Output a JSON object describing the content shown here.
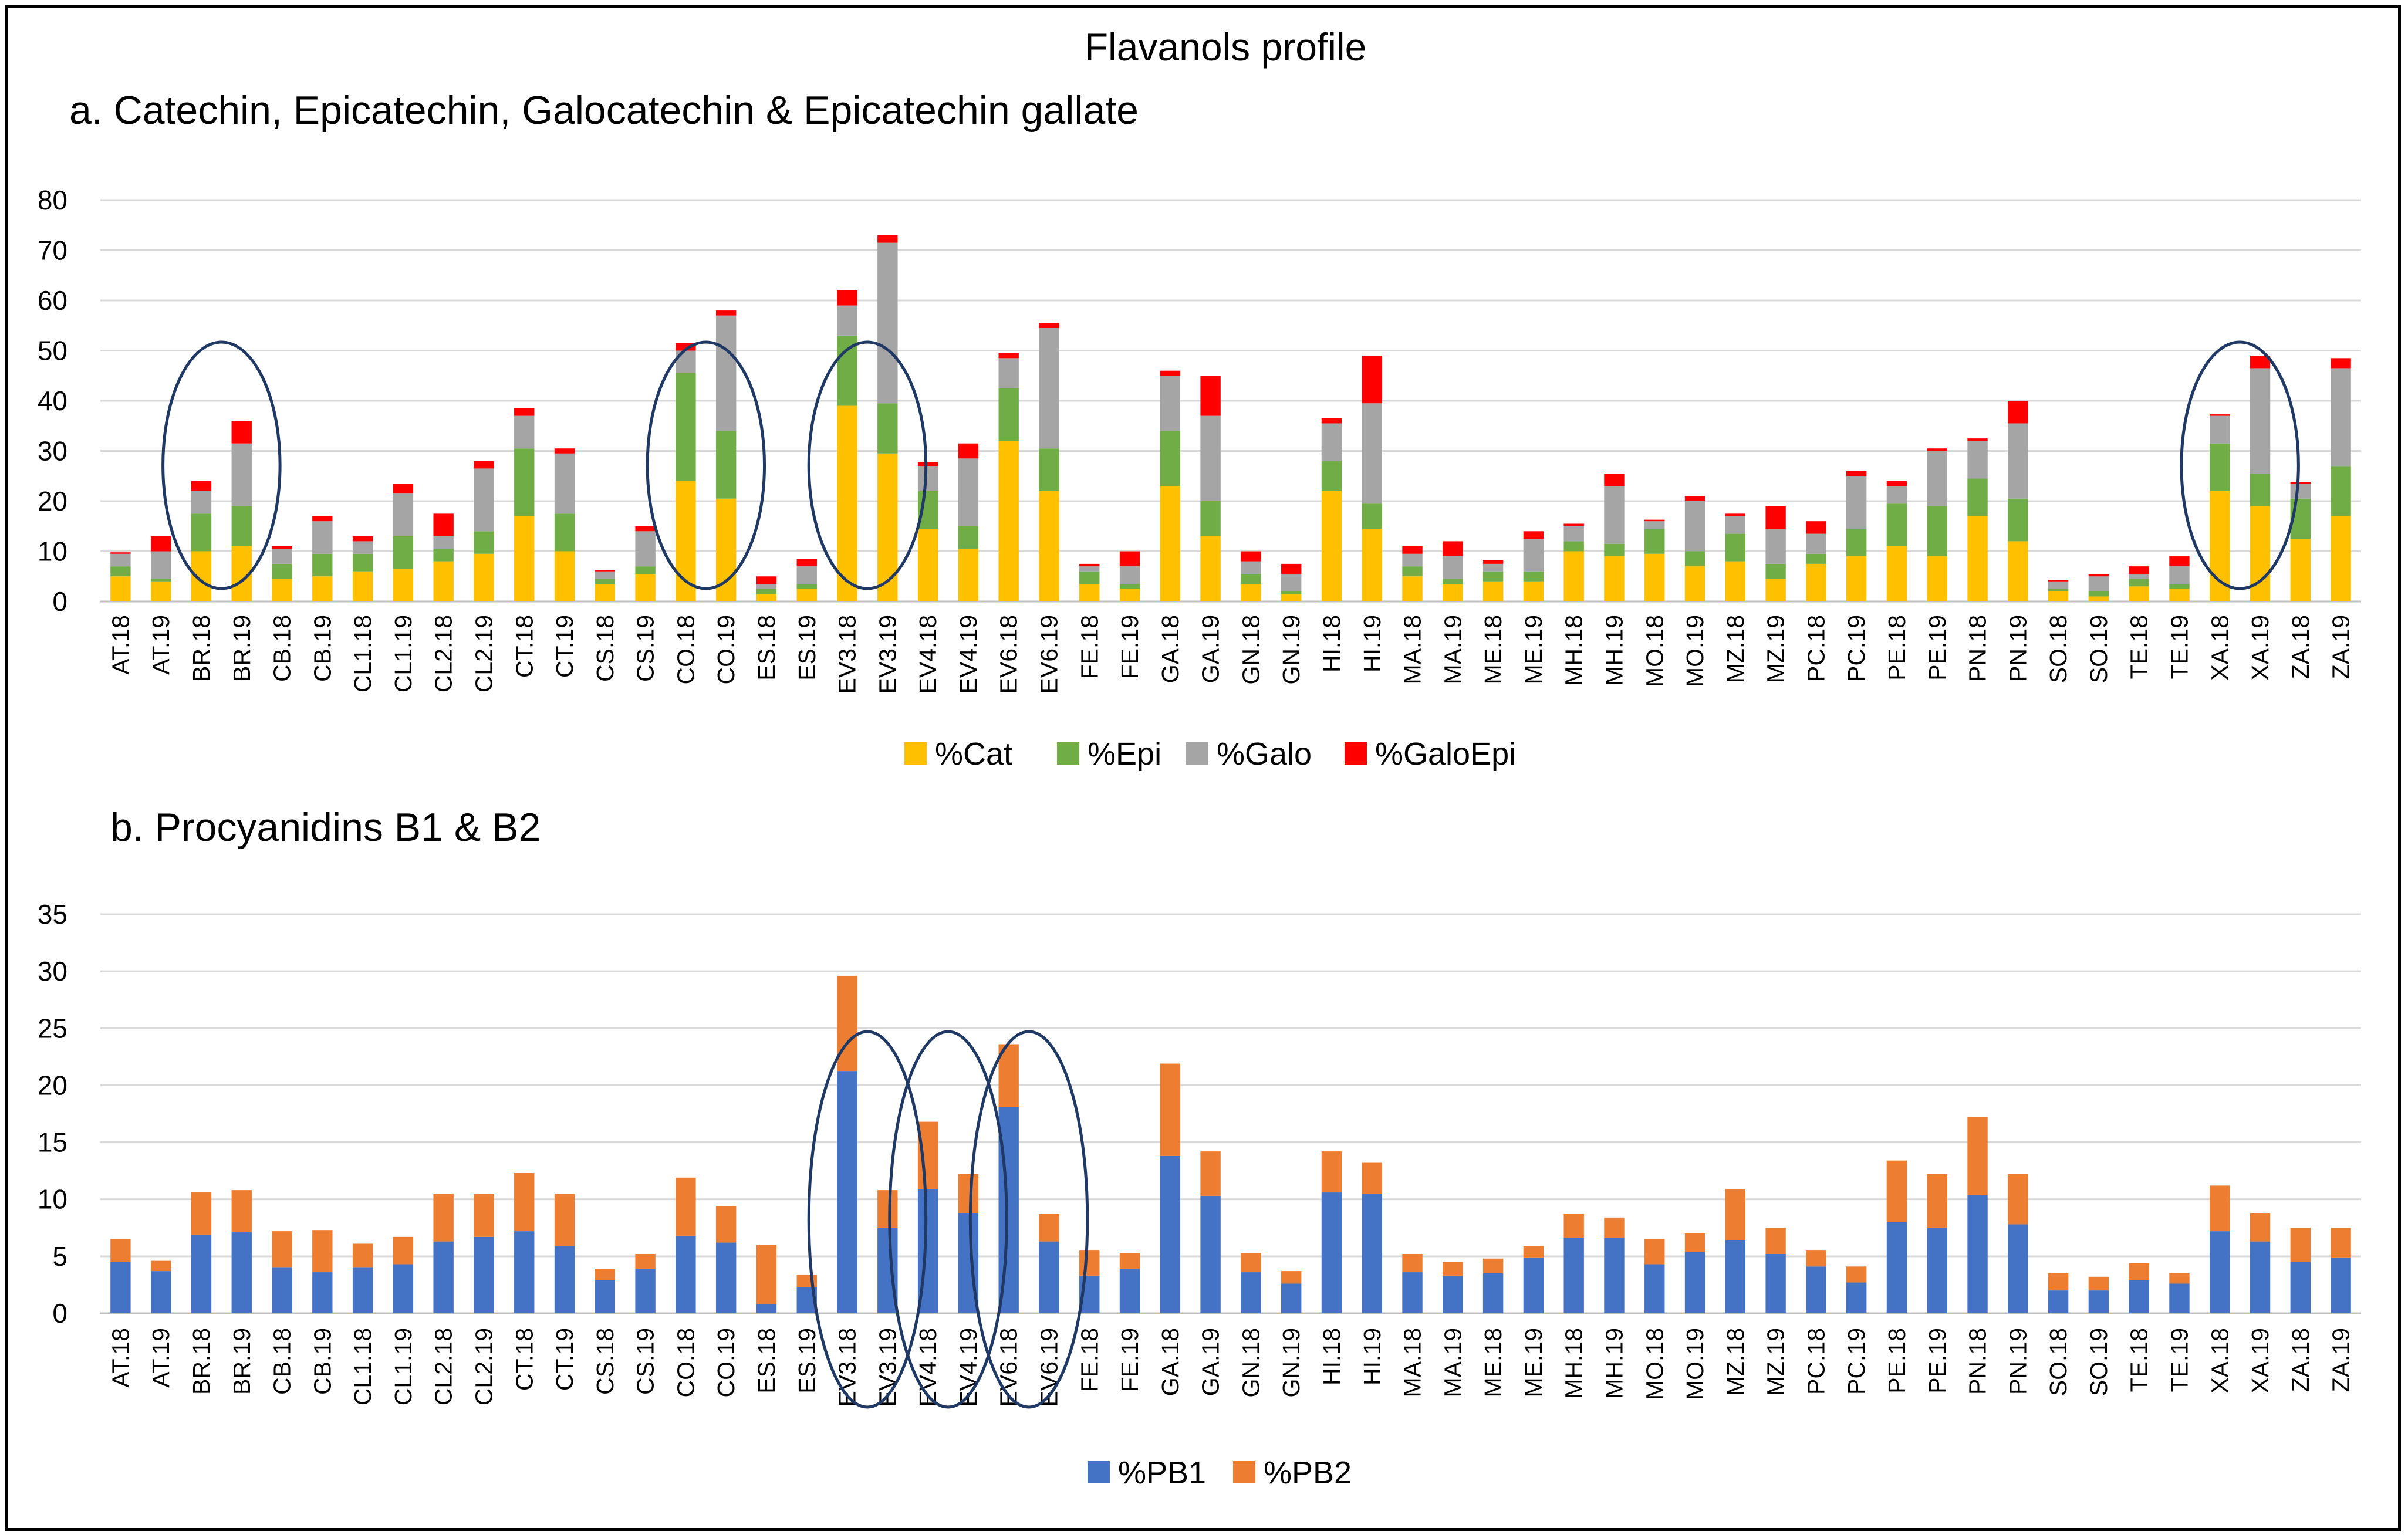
{
  "chart_data": [
    {
      "type": "bar",
      "stacked": true,
      "title": "Flavanols profile",
      "subtitle": "a. Catechin, Epicatechin, Galocatechin & Epicatechin gallate",
      "ylim": [
        0,
        80
      ],
      "yticks": [
        "0",
        "10",
        "20",
        "30",
        "40",
        "50",
        "60",
        "70",
        "80"
      ],
      "categories": [
        "AT.18",
        "AT.19",
        "BR.18",
        "BR.19",
        "CB.18",
        "CB.19",
        "CL1.18",
        "CL1.19",
        "CL2.18",
        "CL2.19",
        "CT.18",
        "CT.19",
        "CS.18",
        "CS.19",
        "CO.18",
        "CO.19",
        "ES.18",
        "ES.19",
        "EV3.18",
        "EV3.19",
        "EV4.18",
        "EV4.19",
        "EV6.18",
        "EV6.19",
        "FE.18",
        "FE.19",
        "GA.18",
        "GA.19",
        "GN.18",
        "GN.19",
        "HI.18",
        "HI.19",
        "MA.18",
        "MA.19",
        "ME.18",
        "ME.19",
        "MH.18",
        "MH.19",
        "MO.18",
        "MO.19",
        "MZ.18",
        "MZ.19",
        "PC.18",
        "PC.19",
        "PE.18",
        "PE.19",
        "PN.18",
        "PN.19",
        "SO.18",
        "SO.19",
        "TE.18",
        "TE.19",
        "XA.18",
        "XA.19",
        "ZA.18",
        "ZA.19"
      ],
      "series": [
        {
          "name": "%Cat",
          "color": "#FFC000",
          "values": [
            5,
            4,
            10,
            11,
            4.5,
            5,
            6,
            6.5,
            8,
            9.5,
            17,
            10,
            3.5,
            5.5,
            24,
            20.5,
            1.5,
            2.5,
            39,
            29.5,
            14.5,
            10.5,
            32,
            22,
            3.5,
            2.5,
            23,
            13,
            3.5,
            1.5,
            22,
            14.5,
            5,
            3.5,
            4,
            4,
            10,
            9,
            9.5,
            7,
            8,
            4.5,
            7.5,
            9,
            11,
            9,
            17,
            12,
            2,
            1,
            3,
            2.5,
            22,
            19,
            12.5,
            17
          ]
        },
        {
          "name": "%Epi",
          "color": "#70AD47",
          "values": [
            2,
            0.5,
            7.5,
            8,
            3,
            4.5,
            3.5,
            6.5,
            2.5,
            4.5,
            13.5,
            7.5,
            1,
            1.5,
            21.5,
            13.5,
            1,
            1,
            14,
            10,
            7.5,
            4.5,
            10.5,
            8.5,
            2.5,
            1,
            11,
            7,
            2,
            0.5,
            6,
            5,
            2,
            1,
            2,
            2,
            2,
            2.5,
            5,
            3,
            5.5,
            3,
            2,
            5.5,
            8.5,
            10,
            7.5,
            8.5,
            0.5,
            1,
            1.5,
            1,
            9.5,
            6.5,
            8,
            10
          ]
        },
        {
          "name": "%Galo",
          "color": "#A5A5A5",
          "values": [
            2.5,
            5.5,
            4.5,
            12.5,
            3,
            6.5,
            2.5,
            8.5,
            2.5,
            12.5,
            6.5,
            12,
            1.5,
            7,
            4.5,
            23,
            1,
            3.5,
            6,
            32,
            5,
            13.5,
            6,
            24,
            1,
            3.5,
            11,
            17,
            2.5,
            3.5,
            7.5,
            20,
            2.5,
            4.5,
            1.5,
            6.5,
            3,
            11.5,
            1.5,
            10,
            3.5,
            7,
            4,
            10.5,
            3.5,
            11,
            7.5,
            15,
            1.5,
            3,
            1,
            3.5,
            5.5,
            21,
            3,
            19.5
          ]
        },
        {
          "name": "%GaloEpi",
          "color": "#FF0000",
          "values": [
            0.3,
            3,
            2,
            4.5,
            0.5,
            1,
            1,
            2,
            4.5,
            1.5,
            1.5,
            1,
            0.3,
            1,
            1.5,
            1,
            1.5,
            1.5,
            3,
            1.5,
            0.8,
            3,
            1,
            1,
            0.5,
            3,
            1,
            8,
            2,
            2,
            1,
            9.5,
            1.5,
            3,
            0.8,
            1.5,
            0.5,
            2.5,
            0.3,
            1,
            0.5,
            4.5,
            2.5,
            1,
            1,
            0.5,
            0.5,
            4.5,
            0.3,
            0.5,
            1.5,
            2,
            0.3,
            2.5,
            0.3,
            2
          ]
        }
      ],
      "legend": "bottom"
    },
    {
      "type": "bar",
      "stacked": true,
      "title": "b. Procyanidins B1 & B2",
      "ylim": [
        0,
        35
      ],
      "yticks": [
        "0",
        "5",
        "10",
        "15",
        "20",
        "25",
        "30",
        "35"
      ],
      "categories": [
        "AT.18",
        "AT.19",
        "BR.18",
        "BR.19",
        "CB.18",
        "CB.19",
        "CL1.18",
        "CL1.19",
        "CL2.18",
        "CL2.19",
        "CT.18",
        "CT.19",
        "CS.18",
        "CS.19",
        "CO.18",
        "CO.19",
        "ES.18",
        "ES.19",
        "EV3.18",
        "EV3.19",
        "EV4.18",
        "EV4.19",
        "EV6.18",
        "EV6.19",
        "FE.18",
        "FE.19",
        "GA.18",
        "GA.19",
        "GN.18",
        "GN.19",
        "HI.18",
        "HI.19",
        "MA.18",
        "MA.19",
        "ME.18",
        "ME.19",
        "MH.18",
        "MH.19",
        "MO.18",
        "MO.19",
        "MZ.18",
        "MZ.19",
        "PC.18",
        "PC.19",
        "PE.18",
        "PE.19",
        "PN.18",
        "PN.19",
        "SO.18",
        "SO.19",
        "TE.18",
        "TE.19",
        "XA.18",
        "XA.19",
        "ZA.18",
        "ZA.19"
      ],
      "series": [
        {
          "name": "%PB1",
          "color": "#4472C4",
          "values": [
            4.5,
            3.7,
            6.9,
            7.1,
            4,
            3.6,
            4,
            4.3,
            6.3,
            6.7,
            7.2,
            5.9,
            2.9,
            3.9,
            6.8,
            6.2,
            0.8,
            2.3,
            21.2,
            7.5,
            10.9,
            8.8,
            18.1,
            6.3,
            3.3,
            3.9,
            13.8,
            10.3,
            3.6,
            2.6,
            10.6,
            10.5,
            3.6,
            3.3,
            3.5,
            4.9,
            6.6,
            6.6,
            4.3,
            5.4,
            6.4,
            5.2,
            4.1,
            2.7,
            8,
            7.5,
            10.4,
            7.8,
            2,
            2,
            2.9,
            2.6,
            7.2,
            6.3,
            4.5,
            4.9
          ]
        },
        {
          "name": "%PB2",
          "color": "#ED7D31",
          "values": [
            2,
            0.9,
            3.7,
            3.7,
            3.2,
            3.7,
            2.1,
            2.4,
            4.2,
            3.8,
            5.1,
            4.6,
            1,
            1.3,
            5.1,
            3.2,
            5.2,
            1.1,
            8.4,
            3.3,
            5.9,
            3.4,
            5.5,
            2.4,
            2.2,
            1.4,
            8.1,
            3.9,
            1.7,
            1.1,
            3.6,
            2.7,
            1.6,
            1.2,
            1.3,
            1,
            2.1,
            1.8,
            2.2,
            1.6,
            4.5,
            2.3,
            1.4,
            1.4,
            5.4,
            4.7,
            6.8,
            4.4,
            1.5,
            1.2,
            1.5,
            0.9,
            4,
            2.5,
            3,
            2.6
          ]
        }
      ],
      "legend": "bottom"
    }
  ],
  "highlights": {
    "a": [
      "BR",
      "CO",
      "EV3",
      "XA"
    ],
    "b": [
      "EV3",
      "EV4",
      "EV6"
    ]
  }
}
